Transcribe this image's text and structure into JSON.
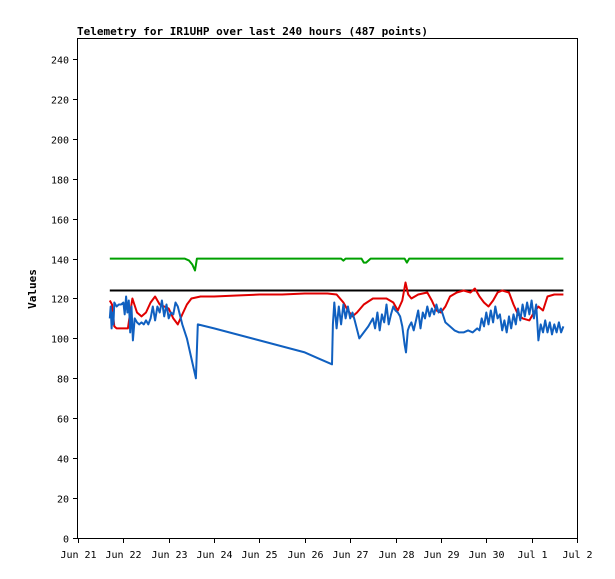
{
  "chart_data": {
    "type": "line",
    "title": "Telemetry for IR1UHP over last 240 hours (487 points)",
    "xlabel": "",
    "ylabel": "Values",
    "ylim": [
      0,
      250
    ],
    "yticks": [
      0,
      20,
      40,
      60,
      80,
      100,
      120,
      140,
      160,
      180,
      200,
      220,
      240
    ],
    "xlim": [
      21,
      32
    ],
    "xticks": [
      {
        "x": 21,
        "label": "Jun 21"
      },
      {
        "x": 22,
        "label": "Jun 22"
      },
      {
        "x": 23,
        "label": "Jun 23"
      },
      {
        "x": 24,
        "label": "Jun 24"
      },
      {
        "x": 25,
        "label": "Jun 25"
      },
      {
        "x": 26,
        "label": "Jun 26"
      },
      {
        "x": 27,
        "label": "Jun 27"
      },
      {
        "x": 28,
        "label": "Jun 28"
      },
      {
        "x": 29,
        "label": "Jun 29"
      },
      {
        "x": 30,
        "label": "Jun 30"
      },
      {
        "x": 31,
        "label": "Jul 1"
      },
      {
        "x": 32,
        "label": "Jul 2"
      }
    ],
    "grid": false,
    "legend": "none",
    "series": [
      {
        "color": "#000000",
        "points": [
          [
            21.7,
            124
          ],
          [
            31.7,
            124
          ]
        ]
      },
      {
        "color": "#00a000",
        "points": [
          [
            21.7,
            140
          ],
          [
            23.35,
            140
          ],
          [
            23.45,
            139
          ],
          [
            23.52,
            137
          ],
          [
            23.58,
            134
          ],
          [
            23.62,
            140
          ],
          [
            26.8,
            140
          ],
          [
            26.85,
            139
          ],
          [
            26.9,
            140
          ],
          [
            27.25,
            140
          ],
          [
            27.3,
            138
          ],
          [
            27.35,
            138
          ],
          [
            27.45,
            140
          ],
          [
            28.2,
            140
          ],
          [
            28.25,
            138
          ],
          [
            28.3,
            140
          ],
          [
            31.7,
            140
          ]
        ]
      },
      {
        "color": "#e00000",
        "points": [
          [
            21.7,
            119
          ],
          [
            21.75,
            117
          ],
          [
            21.8,
            106
          ],
          [
            21.85,
            105
          ],
          [
            22.0,
            105
          ],
          [
            22.1,
            105
          ],
          [
            22.15,
            113
          ],
          [
            22.2,
            120
          ],
          [
            22.3,
            113
          ],
          [
            22.4,
            111
          ],
          [
            22.5,
            113
          ],
          [
            22.6,
            118
          ],
          [
            22.7,
            121
          ],
          [
            22.8,
            117
          ],
          [
            22.9,
            116
          ],
          [
            23.0,
            115
          ],
          [
            23.1,
            110
          ],
          [
            23.2,
            107
          ],
          [
            23.3,
            112
          ],
          [
            23.4,
            117
          ],
          [
            23.5,
            120
          ],
          [
            23.7,
            121
          ],
          [
            24.0,
            121
          ],
          [
            24.5,
            121.5
          ],
          [
            25.0,
            122
          ],
          [
            25.5,
            122
          ],
          [
            26.0,
            122.5
          ],
          [
            26.5,
            122.5
          ],
          [
            26.7,
            122
          ],
          [
            26.85,
            118
          ],
          [
            26.95,
            114
          ],
          [
            27.05,
            111
          ],
          [
            27.15,
            113
          ],
          [
            27.3,
            117
          ],
          [
            27.5,
            120
          ],
          [
            27.8,
            120
          ],
          [
            27.95,
            118
          ],
          [
            28.05,
            114
          ],
          [
            28.15,
            119
          ],
          [
            28.22,
            128
          ],
          [
            28.28,
            122
          ],
          [
            28.35,
            120
          ],
          [
            28.5,
            122
          ],
          [
            28.7,
            123
          ],
          [
            28.8,
            119
          ],
          [
            28.9,
            114
          ],
          [
            29.0,
            113
          ],
          [
            29.1,
            116
          ],
          [
            29.2,
            121
          ],
          [
            29.35,
            123
          ],
          [
            29.5,
            124
          ],
          [
            29.65,
            123
          ],
          [
            29.75,
            125
          ],
          [
            29.85,
            121
          ],
          [
            29.95,
            118
          ],
          [
            30.05,
            116
          ],
          [
            30.15,
            119
          ],
          [
            30.25,
            123
          ],
          [
            30.35,
            124
          ],
          [
            30.5,
            123
          ],
          [
            30.6,
            117
          ],
          [
            30.7,
            112
          ],
          [
            30.8,
            110
          ],
          [
            30.95,
            109
          ],
          [
            31.05,
            113
          ],
          [
            31.15,
            116
          ],
          [
            31.25,
            114
          ],
          [
            31.35,
            121
          ],
          [
            31.5,
            122
          ],
          [
            31.7,
            122
          ]
        ]
      },
      {
        "color": "#1060c0",
        "points": [
          [
            21.7,
            110
          ],
          [
            21.72,
            116
          ],
          [
            21.74,
            105
          ],
          [
            21.76,
            113
          ],
          [
            21.78,
            107
          ],
          [
            21.8,
            118
          ],
          [
            21.85,
            116
          ],
          [
            21.9,
            117
          ],
          [
            21.95,
            117
          ],
          [
            22.0,
            118
          ],
          [
            22.03,
            112
          ],
          [
            22.06,
            121
          ],
          [
            22.09,
            113
          ],
          [
            22.12,
            119
          ],
          [
            22.15,
            103
          ],
          [
            22.18,
            116
          ],
          [
            22.21,
            99
          ],
          [
            22.25,
            110
          ],
          [
            22.3,
            108
          ],
          [
            22.35,
            107
          ],
          [
            22.4,
            108
          ],
          [
            22.45,
            107
          ],
          [
            22.5,
            109
          ],
          [
            22.55,
            107
          ],
          [
            22.6,
            110
          ],
          [
            22.65,
            116
          ],
          [
            22.7,
            109
          ],
          [
            22.75,
            116
          ],
          [
            22.8,
            113
          ],
          [
            22.85,
            119
          ],
          [
            22.9,
            111
          ],
          [
            22.95,
            117
          ],
          [
            23.0,
            110
          ],
          [
            23.05,
            113
          ],
          [
            23.1,
            112
          ],
          [
            23.15,
            118
          ],
          [
            23.2,
            116
          ],
          [
            23.3,
            107
          ],
          [
            23.4,
            100
          ],
          [
            23.5,
            90
          ],
          [
            23.56,
            84
          ],
          [
            23.6,
            80
          ],
          [
            23.64,
            107
          ],
          [
            24.0,
            105
          ],
          [
            24.5,
            102
          ],
          [
            25.0,
            99
          ],
          [
            25.5,
            96
          ],
          [
            26.0,
            93
          ],
          [
            26.3,
            90
          ],
          [
            26.6,
            87
          ],
          [
            26.62,
            107
          ],
          [
            26.65,
            118
          ],
          [
            26.7,
            105
          ],
          [
            26.75,
            116
          ],
          [
            26.8,
            107
          ],
          [
            26.85,
            117
          ],
          [
            26.9,
            110
          ],
          [
            26.95,
            116
          ],
          [
            27.0,
            110
          ],
          [
            27.05,
            113
          ],
          [
            27.1,
            109
          ],
          [
            27.2,
            100
          ],
          [
            27.3,
            103
          ],
          [
            27.4,
            106
          ],
          [
            27.5,
            110
          ],
          [
            27.55,
            105
          ],
          [
            27.6,
            113
          ],
          [
            27.65,
            104
          ],
          [
            27.7,
            112
          ],
          [
            27.75,
            108
          ],
          [
            27.8,
            117
          ],
          [
            27.85,
            107
          ],
          [
            27.9,
            112
          ],
          [
            27.95,
            116
          ],
          [
            28.0,
            114
          ],
          [
            28.05,
            113
          ],
          [
            28.1,
            111
          ],
          [
            28.15,
            106
          ],
          [
            28.2,
            97
          ],
          [
            28.23,
            93
          ],
          [
            28.27,
            104
          ],
          [
            28.3,
            106
          ],
          [
            28.35,
            108
          ],
          [
            28.4,
            104
          ],
          [
            28.45,
            109
          ],
          [
            28.5,
            114
          ],
          [
            28.55,
            105
          ],
          [
            28.6,
            113
          ],
          [
            28.65,
            110
          ],
          [
            28.7,
            116
          ],
          [
            28.75,
            111
          ],
          [
            28.8,
            115
          ],
          [
            28.85,
            112
          ],
          [
            28.9,
            117
          ],
          [
            28.95,
            113
          ],
          [
            29.0,
            115
          ],
          [
            29.1,
            108
          ],
          [
            29.2,
            106
          ],
          [
            29.3,
            104
          ],
          [
            29.4,
            103
          ],
          [
            29.5,
            103
          ],
          [
            29.6,
            104
          ],
          [
            29.7,
            103
          ],
          [
            29.8,
            105
          ],
          [
            29.85,
            104
          ],
          [
            29.9,
            110
          ],
          [
            29.95,
            106
          ],
          [
            30.0,
            113
          ],
          [
            30.05,
            107
          ],
          [
            30.1,
            114
          ],
          [
            30.15,
            108
          ],
          [
            30.2,
            116
          ],
          [
            30.25,
            110
          ],
          [
            30.3,
            112
          ],
          [
            30.35,
            104
          ],
          [
            30.4,
            109
          ],
          [
            30.45,
            103
          ],
          [
            30.5,
            111
          ],
          [
            30.55,
            105
          ],
          [
            30.6,
            112
          ],
          [
            30.65,
            107
          ],
          [
            30.7,
            115
          ],
          [
            30.75,
            109
          ],
          [
            30.8,
            117
          ],
          [
            30.85,
            111
          ],
          [
            30.9,
            118
          ],
          [
            30.95,
            112
          ],
          [
            31.0,
            119
          ],
          [
            31.05,
            110
          ],
          [
            31.1,
            117
          ],
          [
            31.15,
            99
          ],
          [
            31.2,
            107
          ],
          [
            31.25,
            103
          ],
          [
            31.3,
            109
          ],
          [
            31.35,
            103
          ],
          [
            31.4,
            108
          ],
          [
            31.45,
            102
          ],
          [
            31.5,
            107
          ],
          [
            31.55,
            103
          ],
          [
            31.6,
            108
          ],
          [
            31.65,
            103
          ],
          [
            31.7,
            106
          ]
        ]
      }
    ]
  }
}
